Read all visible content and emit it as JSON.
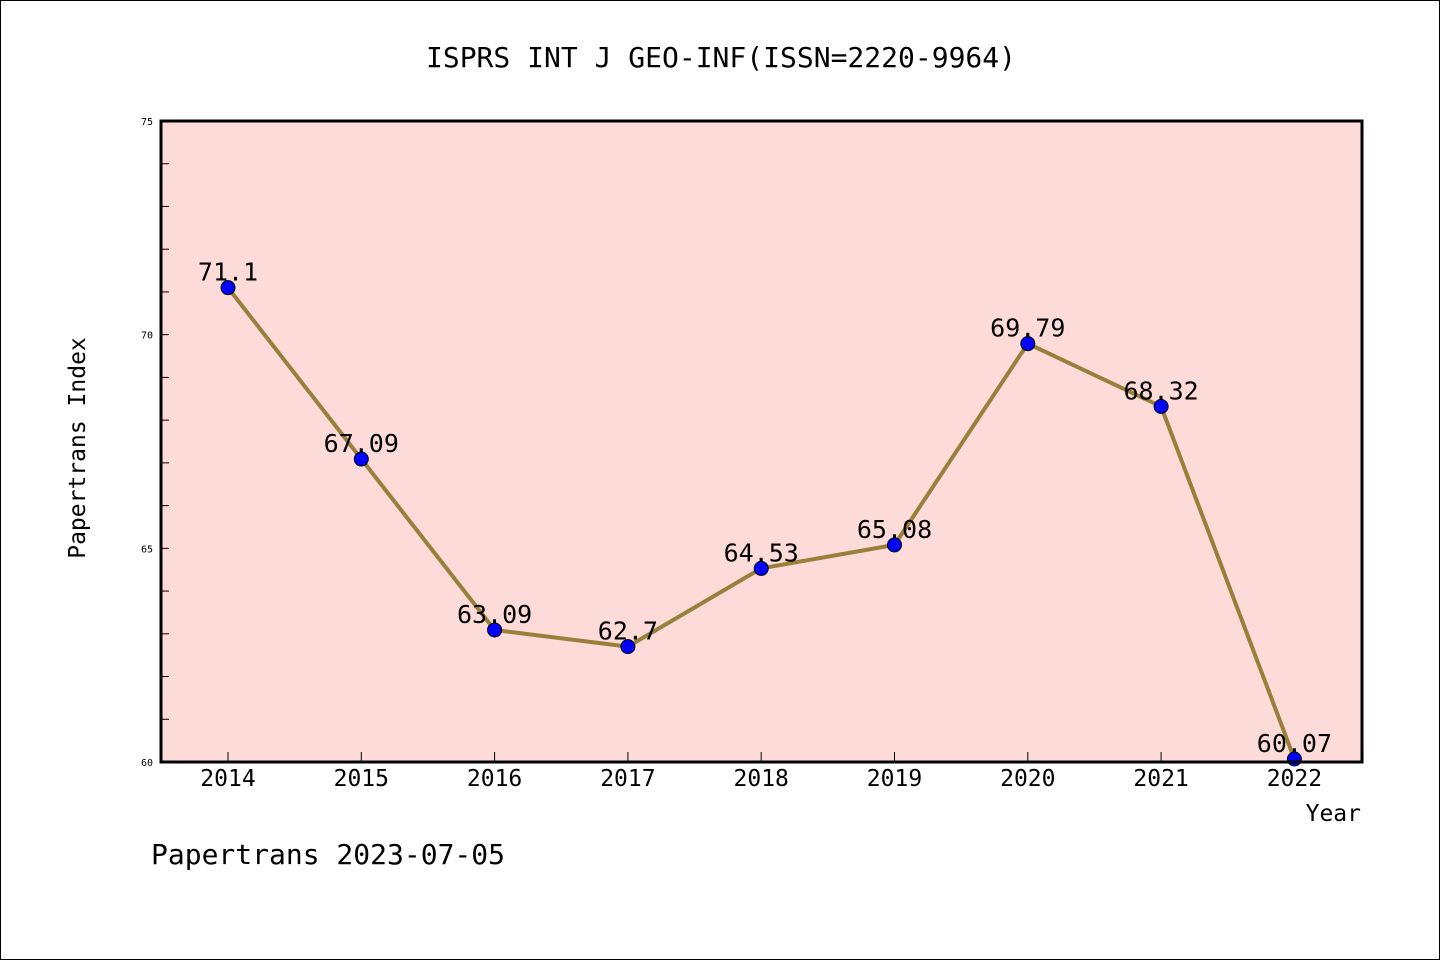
{
  "chart_data": {
    "type": "line",
    "title": "ISPRS INT J GEO-INF(ISSN=2220-9964)",
    "xlabel": "Year",
    "ylabel": "Papertrans Index",
    "categories": [
      "2014",
      "2015",
      "2016",
      "2017",
      "2018",
      "2019",
      "2020",
      "2021",
      "2022"
    ],
    "series": [
      {
        "values": [
          71.1,
          67.09,
          63.09,
          62.7,
          64.53,
          65.08,
          69.79,
          68.32,
          60.07
        ],
        "labels": [
          "71.1",
          "67.09",
          "63.09",
          "62.7",
          "64.53",
          "65.08",
          "69.79",
          "68.32",
          "60.07"
        ]
      }
    ],
    "ylim": [
      60,
      75
    ],
    "yticks": [
      "60",
      "65",
      "70",
      "75"
    ],
    "grid": false,
    "legend": "none"
  },
  "footer": "Papertrans 2023-07-05",
  "colors": {
    "plot_background": "#fddbd8",
    "line": "#9a7f3a",
    "marker": "#0000ff",
    "axis": "#000000"
  }
}
